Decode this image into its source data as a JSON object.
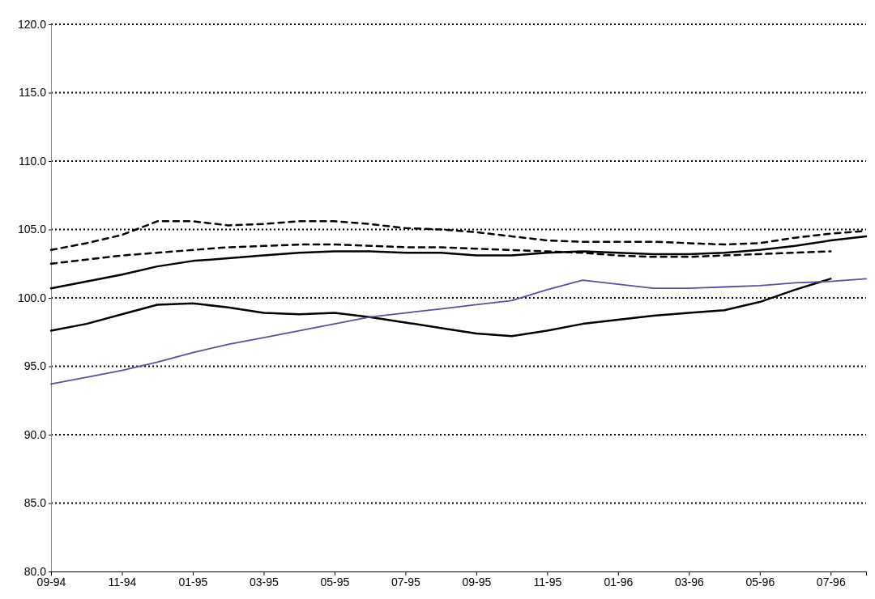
{
  "chart_data": {
    "type": "line",
    "categories": [
      "09-94",
      null,
      "11-94",
      null,
      "01-95",
      null,
      "03-95",
      null,
      "05-95",
      null,
      "07-95",
      null,
      "09-95",
      null,
      "11-95",
      null,
      "01-96",
      null,
      "03-96",
      null,
      "05-96",
      null,
      "07-96",
      null
    ],
    "series": [
      {
        "color": "#000000",
        "line_style": "dashed",
        "values": [
          103.5,
          104.0,
          104.6,
          105.6,
          105.6,
          105.3,
          105.4,
          105.6,
          105.6,
          105.4,
          105.1,
          105.0,
          104.8,
          104.5,
          104.2,
          104.1,
          104.1,
          104.1,
          104.0,
          103.9,
          104.0,
          104.4,
          104.7,
          104.9
        ]
      },
      {
        "color": "#000000",
        "line_style": "dashed",
        "values": [
          102.5,
          102.8,
          103.1,
          103.3,
          103.5,
          103.7,
          103.8,
          103.9,
          103.9,
          103.8,
          103.7,
          103.7,
          103.6,
          103.5,
          103.4,
          103.3,
          103.1,
          103.0,
          103.0,
          103.1,
          103.2,
          103.3,
          103.4,
          null
        ]
      },
      {
        "color": "#000000",
        "line_style": "solid",
        "values": [
          100.7,
          101.2,
          101.7,
          102.3,
          102.7,
          102.9,
          103.1,
          103.3,
          103.4,
          103.4,
          103.3,
          103.3,
          103.1,
          103.1,
          103.3,
          103.4,
          103.3,
          103.2,
          103.2,
          103.3,
          103.5,
          103.8,
          104.2,
          104.5
        ]
      },
      {
        "color": "#000000",
        "line_style": "solid",
        "values": [
          97.6,
          98.1,
          98.8,
          99.5,
          99.6,
          99.3,
          98.9,
          98.8,
          98.9,
          98.6,
          98.2,
          97.8,
          97.4,
          97.2,
          97.6,
          98.1,
          98.4,
          98.7,
          98.9,
          99.1,
          99.7,
          100.6,
          101.4,
          null
        ]
      },
      {
        "color": "#5a4fa0",
        "line_style": "solid",
        "values": [
          93.7,
          94.2,
          94.7,
          95.3,
          96.0,
          96.6,
          97.1,
          97.6,
          98.1,
          98.6,
          98.9,
          99.2,
          99.5,
          99.8,
          100.6,
          101.3,
          101.0,
          100.7,
          100.7,
          100.8,
          100.9,
          101.1,
          101.2,
          101.4
        ]
      }
    ],
    "ylim": [
      80,
      120
    ],
    "yticks": [
      {
        "value": 80,
        "label": "80.0"
      },
      {
        "value": 85,
        "label": "85.0"
      },
      {
        "value": 90,
        "label": "90.0"
      },
      {
        "value": 95,
        "label": "95.0"
      },
      {
        "value": 100,
        "label": "100.0"
      },
      {
        "value": 105,
        "label": "105.0"
      },
      {
        "value": 110,
        "label": "110.0"
      },
      {
        "value": 115,
        "label": "115.0"
      },
      {
        "value": 120,
        "label": "120.0"
      }
    ],
    "grid": "y"
  }
}
